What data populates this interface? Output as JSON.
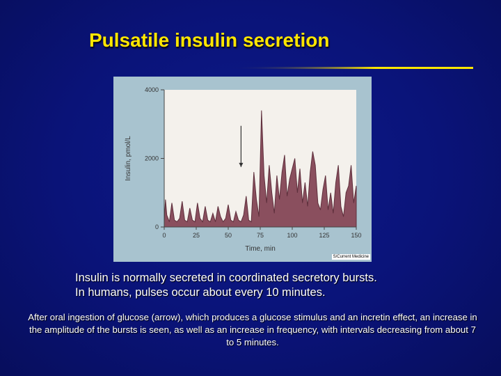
{
  "slide": {
    "title": "Pulsatile insulin secretion",
    "bullet_line1": "Insulin is normally secreted in coordinated secretory bursts.",
    "bullet_line2": "In humans, pulses occur about every 10 minutes.",
    "caption": "After oral ingestion of glucose (arrow), which produces a glucose stimulus and an incretin effect, an increase in the amplitude of the bursts is seen, as well as an increase in frequency, with intervals decreasing from about 7 to 5 minutes.",
    "figure_credit": "S/Current Medicine",
    "colors": {
      "title": "#ffe600",
      "fill": "#8a4f5e",
      "stroke": "#5e2f3c",
      "panel": "#a8c3cf",
      "plot_bg": "#f4f1ec"
    }
  },
  "chart_data": {
    "type": "area",
    "xlabel": "Time, min",
    "ylabel": "Insulin, pmol/L",
    "xlim": [
      0,
      150
    ],
    "ylim": [
      0,
      4000
    ],
    "x_ticks": [
      "0",
      "25",
      "50",
      "75",
      "100",
      "125",
      "150"
    ],
    "y_ticks": [
      "0",
      "2000",
      "4000"
    ],
    "annotation": {
      "type": "arrow",
      "x": 60,
      "y_from": 2950,
      "y_to": 1750
    },
    "x": [
      0,
      1,
      2,
      4,
      6,
      8,
      10,
      12,
      14,
      16,
      18,
      20,
      22,
      24,
      26,
      28,
      30,
      32,
      34,
      36,
      38,
      40,
      42,
      44,
      46,
      48,
      50,
      52,
      54,
      56,
      58,
      60,
      62,
      64,
      66,
      68,
      70,
      72,
      74,
      76,
      78,
      80,
      82,
      84,
      86,
      88,
      90,
      92,
      94,
      96,
      98,
      100,
      102,
      104,
      106,
      108,
      110,
      112,
      114,
      116,
      118,
      120,
      122,
      124,
      126,
      128,
      130,
      132,
      134,
      136,
      138,
      140,
      142,
      144,
      146,
      148,
      150
    ],
    "y": [
      150,
      800,
      350,
      150,
      700,
      200,
      150,
      250,
      750,
      200,
      150,
      550,
      200,
      150,
      700,
      250,
      150,
      600,
      200,
      150,
      400,
      150,
      600,
      300,
      150,
      250,
      650,
      200,
      150,
      450,
      200,
      150,
      350,
      900,
      200,
      150,
      1600,
      800,
      300,
      3400,
      1500,
      700,
      1800,
      1000,
      400,
      1500,
      800,
      1600,
      2100,
      900,
      1400,
      1700,
      2000,
      1000,
      1700,
      700,
      1300,
      600,
      1600,
      2200,
      1800,
      700,
      500,
      1100,
      1500,
      500,
      1000,
      400,
      1300,
      1800,
      600,
      300,
      1000,
      1200,
      1800,
      700,
      1200
    ]
  }
}
